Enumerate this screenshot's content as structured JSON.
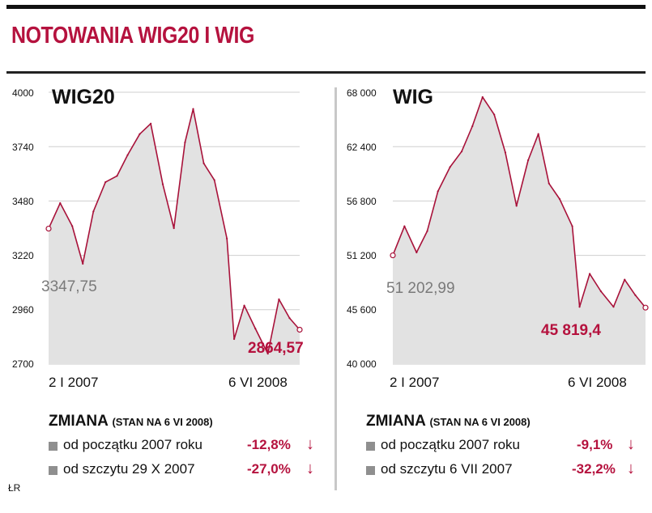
{
  "header": {
    "title": "NOTOWANIA WIG20 I WIG"
  },
  "credit": "ŁR",
  "panels": [
    {
      "name": "WIG20",
      "yticks": [
        "4000",
        "3740",
        "3480",
        "3220",
        "2960",
        "2700"
      ],
      "xstart": "2 I 2007",
      "xend": "6 VI 2008",
      "start_label": "3347,75",
      "end_label": "2864,57",
      "changes_title": "ZMIANA",
      "changes_note": "(STAN NA 6 VI 2008)",
      "rows": [
        {
          "label": "od początku 2007 roku",
          "value": "-12,8%"
        },
        {
          "label": "od szczytu 29 X 2007",
          "value": "-27,0%"
        }
      ]
    },
    {
      "name": "WIG",
      "yticks": [
        "68 000",
        "62 400",
        "56 800",
        "51 200",
        "45 600",
        "40 000"
      ],
      "xstart": "2 I 2007",
      "xend": "6 VI 2008",
      "start_label": "51 202,99",
      "end_label": "45 819,4",
      "changes_title": "ZMIANA",
      "changes_note": "(STAN NA 6 VI 2008)",
      "rows": [
        {
          "label": "od początku 2007 roku",
          "value": "-9,1%"
        },
        {
          "label": "od szczytu 6 VII 2007",
          "value": "-32,2%"
        }
      ]
    }
  ],
  "colors": {
    "accent": "#b5123e",
    "area": "#e2e2e2",
    "line": "#a8123a",
    "divider": "#c8c8c8"
  },
  "chart_data": [
    {
      "type": "area",
      "title": "WIG20",
      "ylim": [
        2700,
        4000
      ],
      "x": [
        "2007-01-02",
        "2007-01-26",
        "2007-02-20",
        "2007-03-14",
        "2007-04-05",
        "2007-04-30",
        "2007-05-24",
        "2007-06-15",
        "2007-07-10",
        "2007-08-02",
        "2007-08-27",
        "2007-09-19",
        "2007-10-12",
        "2007-10-29",
        "2007-11-20",
        "2007-12-12",
        "2008-01-07",
        "2008-01-22",
        "2008-02-12",
        "2008-03-06",
        "2008-04-01",
        "2008-04-24",
        "2008-05-16",
        "2008-06-06"
      ],
      "series": [
        {
          "values": [
            3347.75,
            3470,
            3360,
            3180,
            3430,
            3570,
            3600,
            3700,
            3800,
            3850,
            3560,
            3350,
            3760,
            3920,
            3660,
            3580,
            3300,
            2820,
            2980,
            2870,
            2750,
            3010,
            2920,
            2864.57
          ]
        }
      ]
    },
    {
      "type": "area",
      "title": "WIG",
      "ylim": [
        40000,
        68000
      ],
      "x": [
        "2007-01-02",
        "2007-01-26",
        "2007-02-20",
        "2007-03-14",
        "2007-04-05",
        "2007-04-30",
        "2007-05-24",
        "2007-06-15",
        "2007-07-06",
        "2007-07-30",
        "2007-08-22",
        "2007-09-14",
        "2007-10-08",
        "2007-10-29",
        "2007-11-20",
        "2007-12-12",
        "2008-01-07",
        "2008-01-22",
        "2008-02-12",
        "2008-03-06",
        "2008-04-01",
        "2008-04-24",
        "2008-05-16",
        "2008-06-06"
      ],
      "series": [
        {
          "values": [
            51202.99,
            54200,
            51500,
            53700,
            57800,
            60300,
            61900,
            64500,
            67500,
            65700,
            61800,
            56300,
            61000,
            63700,
            58600,
            57000,
            54200,
            45900,
            49300,
            47500,
            45900,
            48700,
            47100,
            45819.4
          ]
        }
      ]
    }
  ]
}
